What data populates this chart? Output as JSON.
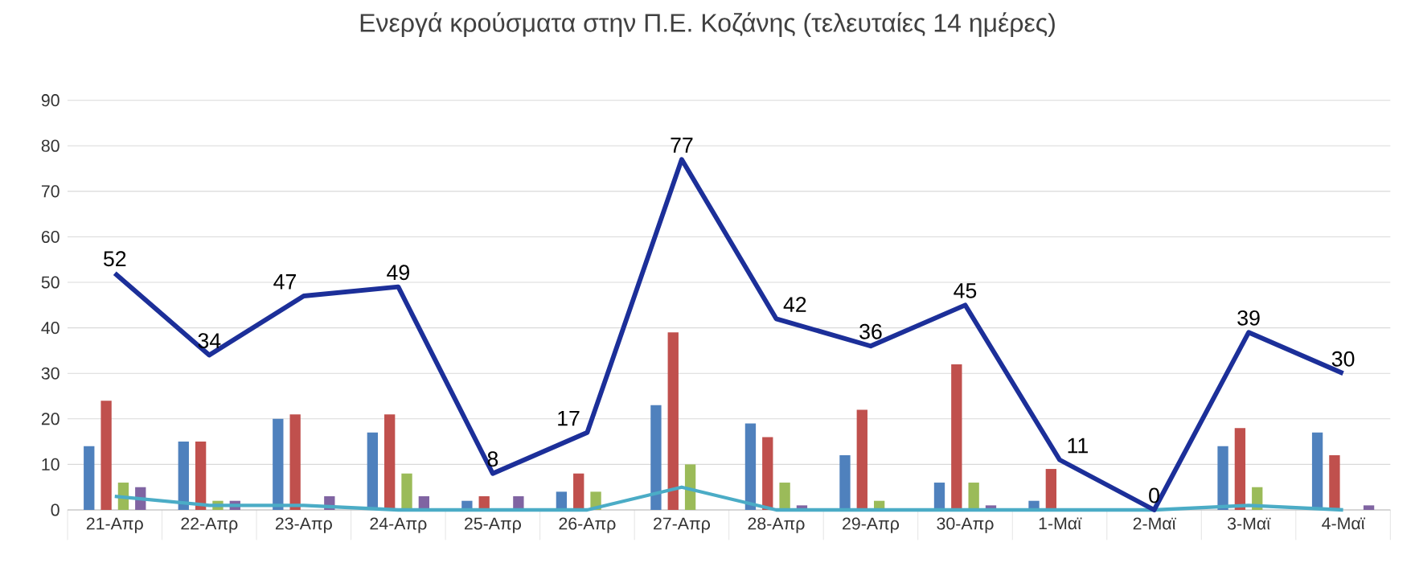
{
  "chart_data": {
    "type": "bar",
    "title": "Ενεργά κρούσματα στην Π.Ε. Κοζάνης (τελευταίες 14 ημέρες)",
    "categories": [
      "21-Απρ",
      "22-Απρ",
      "23-Απρ",
      "24-Απρ",
      "25-Απρ",
      "26-Απρ",
      "27-Απρ",
      "28-Απρ",
      "29-Απρ",
      "30-Απρ",
      "1-Μαϊ",
      "2-Μαϊ",
      "3-Μαϊ",
      "4-Μαϊ"
    ],
    "series": [
      {
        "color": "#4f81bd",
        "values": [
          14,
          15,
          20,
          17,
          2,
          4,
          23,
          19,
          12,
          6,
          2,
          0,
          14,
          17
        ]
      },
      {
        "color": "#c0504d",
        "values": [
          24,
          15,
          21,
          21,
          3,
          8,
          39,
          16,
          22,
          32,
          9,
          0,
          18,
          12
        ]
      },
      {
        "color": "#9bbb59",
        "values": [
          6,
          2,
          0,
          8,
          0,
          4,
          10,
          6,
          2,
          6,
          0,
          0,
          5,
          0
        ]
      },
      {
        "color": "#8064a2",
        "values": [
          5,
          2,
          3,
          3,
          3,
          0,
          0,
          1,
          0,
          1,
          0,
          0,
          0,
          1
        ]
      },
      {
        "type": "line",
        "color": "#4bacc6",
        "values": [
          3,
          1,
          1,
          0,
          0,
          0,
          5,
          0,
          0,
          0,
          0,
          0,
          1,
          0
        ]
      },
      {
        "type": "line",
        "color": "#1c2f99",
        "values": [
          52,
          34,
          47,
          49,
          8,
          17,
          77,
          42,
          36,
          45,
          11,
          0,
          39,
          30
        ],
        "value_labels": [
          "52",
          "34",
          "47",
          "49",
          "8",
          "17",
          "77",
          "42",
          "36",
          "45",
          "11",
          "0",
          "39",
          "30"
        ]
      }
    ],
    "ylim": [
      0,
      90
    ],
    "yticks": [
      0,
      10,
      20,
      30,
      40,
      50,
      60,
      70,
      80,
      90
    ],
    "grid": "y"
  }
}
